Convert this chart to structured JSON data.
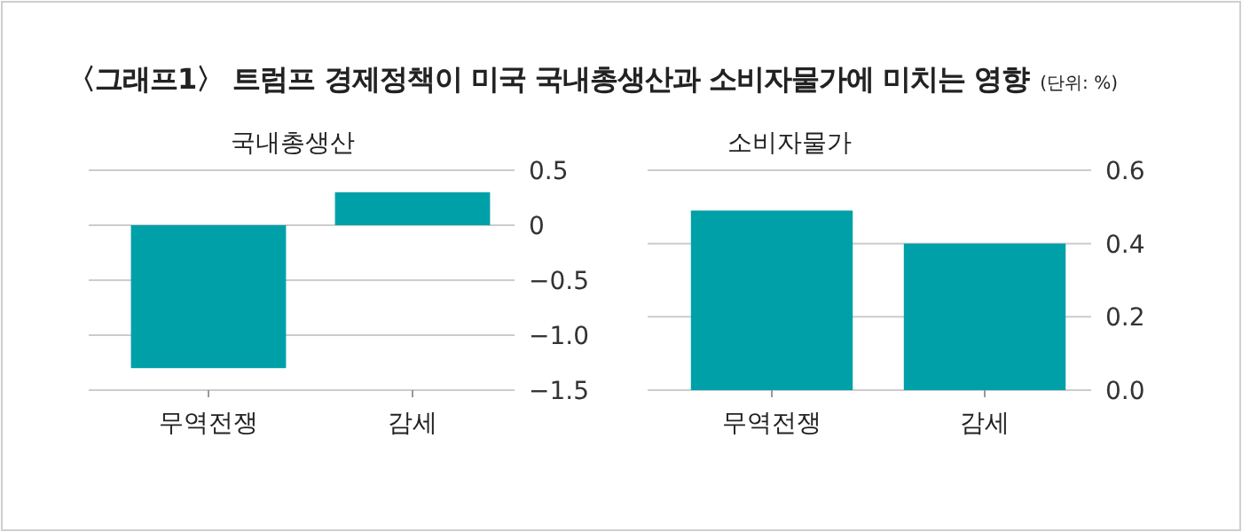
{
  "chart_data": [
    {
      "type": "bar",
      "title": "국내총생산",
      "annotations": [
        "〈그래프1〉 트럼프 경제정책이 미국 국내총생산과 소비자물가에 미치는 영향",
        "(단위: %)"
      ],
      "categories": [
        "무역전쟁",
        "감세"
      ],
      "values": [
        -1.3,
        0.3
      ],
      "color": "#00a0a8",
      "ylim": [
        -1.5,
        0.5
      ],
      "yticks": [
        {
          "value": 0.5,
          "label": "0.5"
        },
        {
          "value": 0,
          "label": "0"
        },
        {
          "value": -0.5,
          "label": "−0.5"
        },
        {
          "value": -1,
          "label": "−1.0"
        },
        {
          "value": -1.5,
          "label": "−1.5"
        }
      ],
      "grid": "y"
    },
    {
      "type": "bar",
      "title": "소비자물가",
      "categories": [
        "무역전쟁",
        "감세"
      ],
      "values": [
        0.49,
        0.4
      ],
      "color": "#00a0a8",
      "ylim": [
        0,
        0.6
      ],
      "yticks": [
        {
          "value": 0,
          "label": "0.0"
        },
        {
          "value": 0.2,
          "label": "0.2"
        },
        {
          "value": 0.4,
          "label": "0.4"
        },
        {
          "value": 0.6,
          "label": "0.6"
        }
      ],
      "grid": "y"
    }
  ]
}
